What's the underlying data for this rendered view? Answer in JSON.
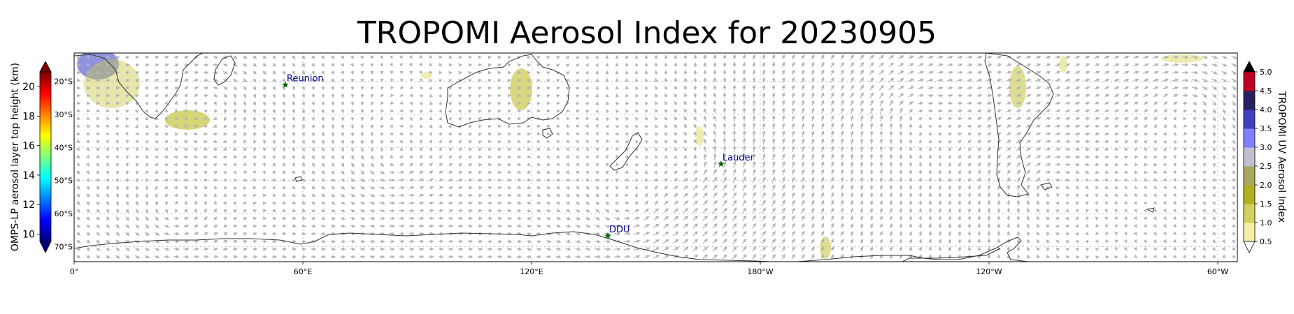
{
  "title": "TROPOMI Aerosol Index for 20230905",
  "left_colorbar": {
    "label": "OMPS-LP aerosol layer top height (km)",
    "ticks": [
      "10",
      "12",
      "14",
      "16",
      "18",
      "20"
    ],
    "range": [
      9.5,
      21
    ],
    "extend": "both",
    "colormap": "jet"
  },
  "right_colorbar": {
    "label": "TROPOMI UV Aerosol Index",
    "ticks": [
      "0.5",
      "1.0",
      "1.5",
      "2.0",
      "2.5",
      "3.0",
      "3.5",
      "4.0",
      "4.5",
      "5.0"
    ],
    "range": [
      0.5,
      5.0
    ],
    "extend": "both",
    "colors": [
      "#fffffa",
      "#f4f0a8",
      "#d4d060",
      "#b0b020",
      "#a8a860",
      "#c0c0d0",
      "#8080ff",
      "#4040c0",
      "#282060",
      "#c00020",
      "#e00000",
      "#000000"
    ]
  },
  "map": {
    "lon_ticks": [
      "0°",
      "60°E",
      "120°E",
      "180°W",
      "120°W",
      "60°W"
    ],
    "lat_ticks": [
      "20°S",
      "30°S",
      "40°S",
      "50°S",
      "60°S",
      "70°S"
    ],
    "stations": [
      {
        "name": "Reunion",
        "lon": 55.4,
        "lat": -21.1
      },
      {
        "name": "Lauder",
        "lon": 169.7,
        "lat": -45.0
      },
      {
        "name": "DDU",
        "lon": 140.0,
        "lat": -66.7
      }
    ]
  },
  "colors": {
    "station_marker": "#006400",
    "station_label": "#00008b",
    "coastline": "#333333",
    "wind_arrows": "#b4b4b4",
    "aerosol_low": "#c8c84a",
    "aerosol_high": "#7b7fd9"
  }
}
